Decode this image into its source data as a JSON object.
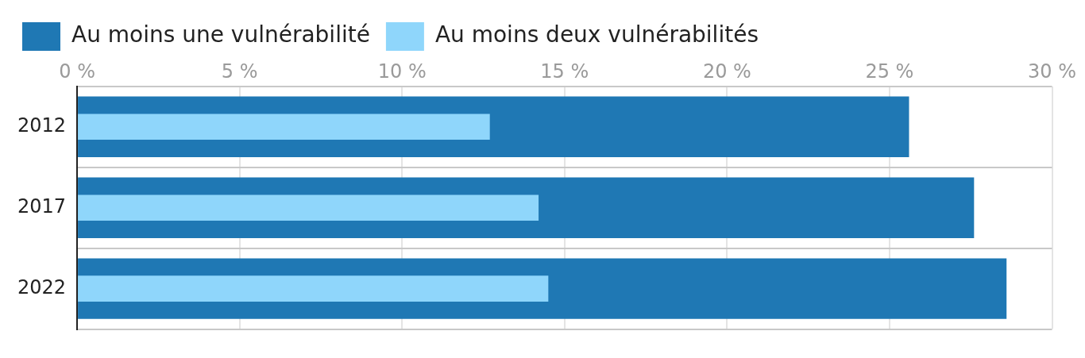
{
  "chart_data": {
    "type": "bar",
    "orientation": "horizontal",
    "categories": [
      "2012",
      "2017",
      "2022"
    ],
    "series": [
      {
        "name": "Au moins une vulnérabilité",
        "color": "#1f78b4",
        "values": [
          25.6,
          27.6,
          28.6
        ]
      },
      {
        "name": "Au moins deux vulnérabilités",
        "color": "#8fd6fb",
        "values": [
          12.7,
          14.2,
          14.5
        ]
      }
    ],
    "xlim": [
      0,
      30
    ],
    "xticks": [
      {
        "value": 0,
        "label": "0 %"
      },
      {
        "value": 5,
        "label": "5 %"
      },
      {
        "value": 10,
        "label": "10 %"
      },
      {
        "value": 15,
        "label": "15 %"
      },
      {
        "value": 20,
        "label": "20 %"
      },
      {
        "value": 25,
        "label": "25 %"
      },
      {
        "value": 30,
        "label": "30 %"
      }
    ],
    "grid": true,
    "legend": "top left"
  }
}
